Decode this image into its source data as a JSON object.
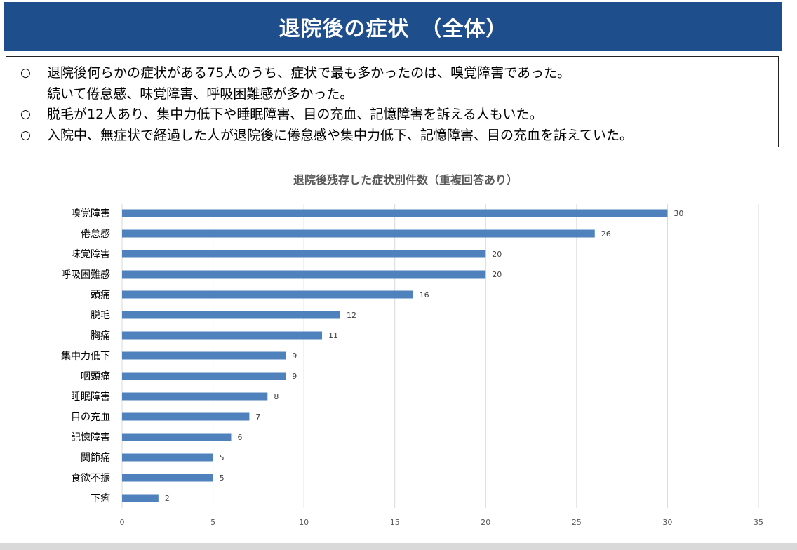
{
  "header": {
    "title": "退院後の症状　（全体）"
  },
  "summary": {
    "bullet_symbol": "○",
    "lines": [
      {
        "bullet": true,
        "text": "退院後何らかの症状がある75人のうち、症状で最も多かったのは、嗅覚障害であった。"
      },
      {
        "bullet": false,
        "text": "続いて倦怠感、味覚障害、呼吸困難感が多かった。"
      },
      {
        "bullet": true,
        "text": "脱毛が12人あり、集中力低下や睡眠障害、目の充血、記憶障害を訴える人もいた。"
      },
      {
        "bullet": true,
        "text": "入院中、無症状で経過した人が退院後に倦怠感や集中力低下、記憶障害、目の充血を訴えていた。"
      }
    ]
  },
  "colors": {
    "bar": "#4f81bd",
    "grid": "#d9d9d9",
    "banner": "#1f4e8c"
  },
  "chart_data": {
    "type": "bar",
    "orientation": "horizontal",
    "title": "退院後残存した症状別件数（重複回答あり）",
    "xlabel": "",
    "ylabel": "",
    "xlim": [
      0,
      35
    ],
    "xticks": [
      0,
      5,
      10,
      15,
      20,
      25,
      30,
      35
    ],
    "grid": true,
    "categories": [
      "嗅覚障害",
      "倦怠感",
      "味覚障害",
      "呼吸困難感",
      "頭痛",
      "脱毛",
      "胸痛",
      "集中力低下",
      "咽頭痛",
      "睡眠障害",
      "目の充血",
      "記憶障害",
      "関節痛",
      "食欲不振",
      "下痢"
    ],
    "values": [
      30,
      26,
      20,
      20,
      16,
      12,
      11,
      9,
      9,
      8,
      7,
      6,
      5,
      5,
      2
    ]
  }
}
